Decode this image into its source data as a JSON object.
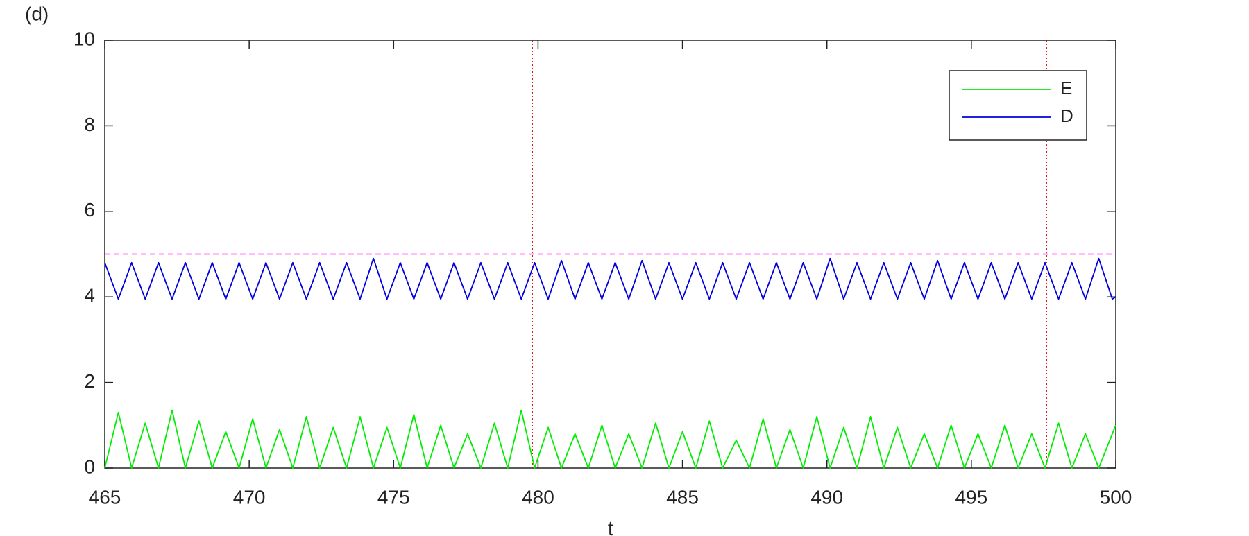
{
  "chart_data": {
    "type": "line",
    "panel_label": "(d)",
    "x_label": "t",
    "x": [
      465,
      465.47,
      465.93,
      466.4,
      466.86,
      467.33,
      467.79,
      468.26,
      468.72,
      469.19,
      469.65,
      470.12,
      470.58,
      471.05,
      471.51,
      471.98,
      472.44,
      472.91,
      473.37,
      473.84,
      474.3,
      474.77,
      475.23,
      475.7,
      476.16,
      476.63,
      477.09,
      477.56,
      478.02,
      478.49,
      478.95,
      479.42,
      479.88,
      480.35,
      480.81,
      481.28,
      481.74,
      482.21,
      482.67,
      483.14,
      483.6,
      484.07,
      484.53,
      485.0,
      485.46,
      485.93,
      486.39,
      486.86,
      487.32,
      487.79,
      488.25,
      488.72,
      489.18,
      489.65,
      490.11,
      490.58,
      491.04,
      491.51,
      491.97,
      492.44,
      492.9,
      493.37,
      493.83,
      494.3,
      494.76,
      495.23,
      495.69,
      496.16,
      496.62,
      497.09,
      497.55,
      498.02,
      498.48,
      498.95,
      499.41,
      499.88,
      500
    ],
    "series": [
      {
        "name": "E",
        "color": "#00ee00",
        "values": [
          0,
          1.3,
          0,
          1.05,
          0,
          1.35,
          0,
          1.1,
          0,
          0.85,
          0,
          1.15,
          0,
          0.9,
          0,
          1.2,
          0,
          0.95,
          0,
          1.2,
          0,
          0.95,
          0,
          1.25,
          0,
          1.0,
          0,
          0.8,
          0,
          1.05,
          0,
          1.35,
          0,
          0.95,
          0,
          0.8,
          0,
          1.0,
          0,
          0.8,
          0,
          1.05,
          0,
          0.85,
          0,
          1.1,
          0,
          0.65,
          0,
          1.15,
          0,
          0.9,
          0,
          1.2,
          0,
          0.95,
          0,
          1.2,
          0,
          0.95,
          0,
          0.8,
          0,
          1.0,
          0,
          0.8,
          0,
          1.0,
          0,
          0.8,
          0,
          1.05,
          0,
          0.8,
          0,
          0.8,
          1.0
        ]
      },
      {
        "name": "D",
        "color": "#0000dd",
        "values": [
          4.8,
          3.95,
          4.8,
          3.95,
          4.8,
          3.95,
          4.8,
          3.95,
          4.8,
          3.95,
          4.8,
          3.95,
          4.8,
          3.95,
          4.8,
          3.95,
          4.8,
          3.95,
          4.8,
          3.95,
          4.9,
          3.95,
          4.8,
          3.95,
          4.8,
          3.95,
          4.8,
          3.95,
          4.8,
          3.95,
          4.8,
          3.95,
          4.8,
          3.95,
          4.85,
          3.95,
          4.8,
          3.95,
          4.8,
          3.95,
          4.85,
          3.95,
          4.8,
          3.95,
          4.8,
          3.95,
          4.8,
          3.95,
          4.8,
          3.95,
          4.8,
          3.95,
          4.8,
          3.95,
          4.9,
          3.95,
          4.8,
          3.95,
          4.8,
          3.95,
          4.8,
          3.95,
          4.85,
          3.95,
          4.8,
          3.95,
          4.8,
          3.95,
          4.8,
          3.95,
          4.8,
          3.95,
          4.8,
          3.95,
          4.9,
          3.95,
          4.0
        ]
      }
    ],
    "reference_lines": [
      {
        "axis": "y",
        "value": 5,
        "color": "#ff00ff",
        "style": "dashed"
      },
      {
        "axis": "x",
        "value": 479.8,
        "color": "#dd0000",
        "style": "dotted"
      },
      {
        "axis": "x",
        "value": 497.6,
        "color": "#dd0000",
        "style": "dotted"
      }
    ],
    "xlim": [
      465,
      500
    ],
    "xticks": [
      465,
      470,
      475,
      480,
      485,
      490,
      495,
      500
    ],
    "ylim": [
      0,
      10
    ],
    "yticks": [
      0,
      2,
      4,
      6,
      8,
      10
    ],
    "legend": "northeast",
    "grid": false
  }
}
